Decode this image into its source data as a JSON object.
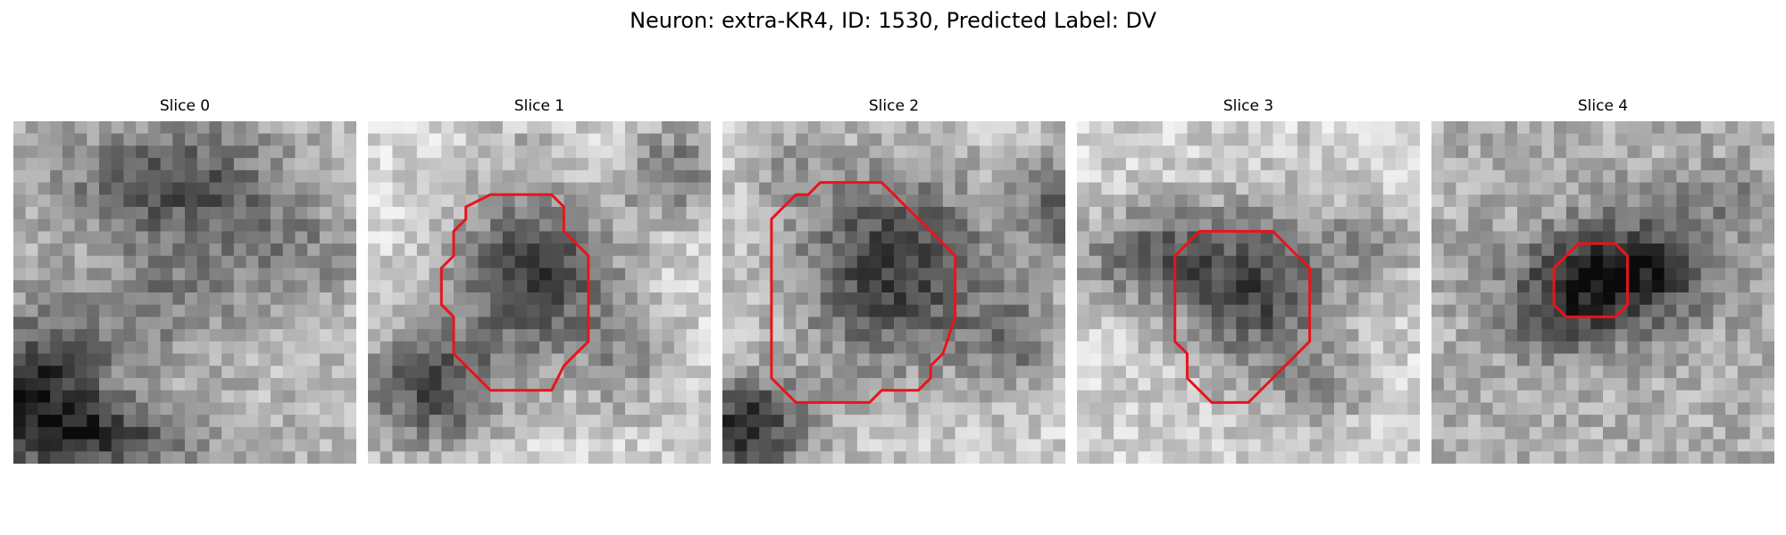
{
  "figure": {
    "title": "Neuron: extra-KR4, ID: 1530, Predicted Label: DV",
    "contour_color": "#e8141c"
  },
  "panels": [
    {
      "label": "Slice 0",
      "has_contour": false
    },
    {
      "label": "Slice 1",
      "has_contour": true
    },
    {
      "label": "Slice 2",
      "has_contour": true
    },
    {
      "label": "Slice 3",
      "has_contour": true
    },
    {
      "label": "Slice 4",
      "has_contour": true
    }
  ]
}
